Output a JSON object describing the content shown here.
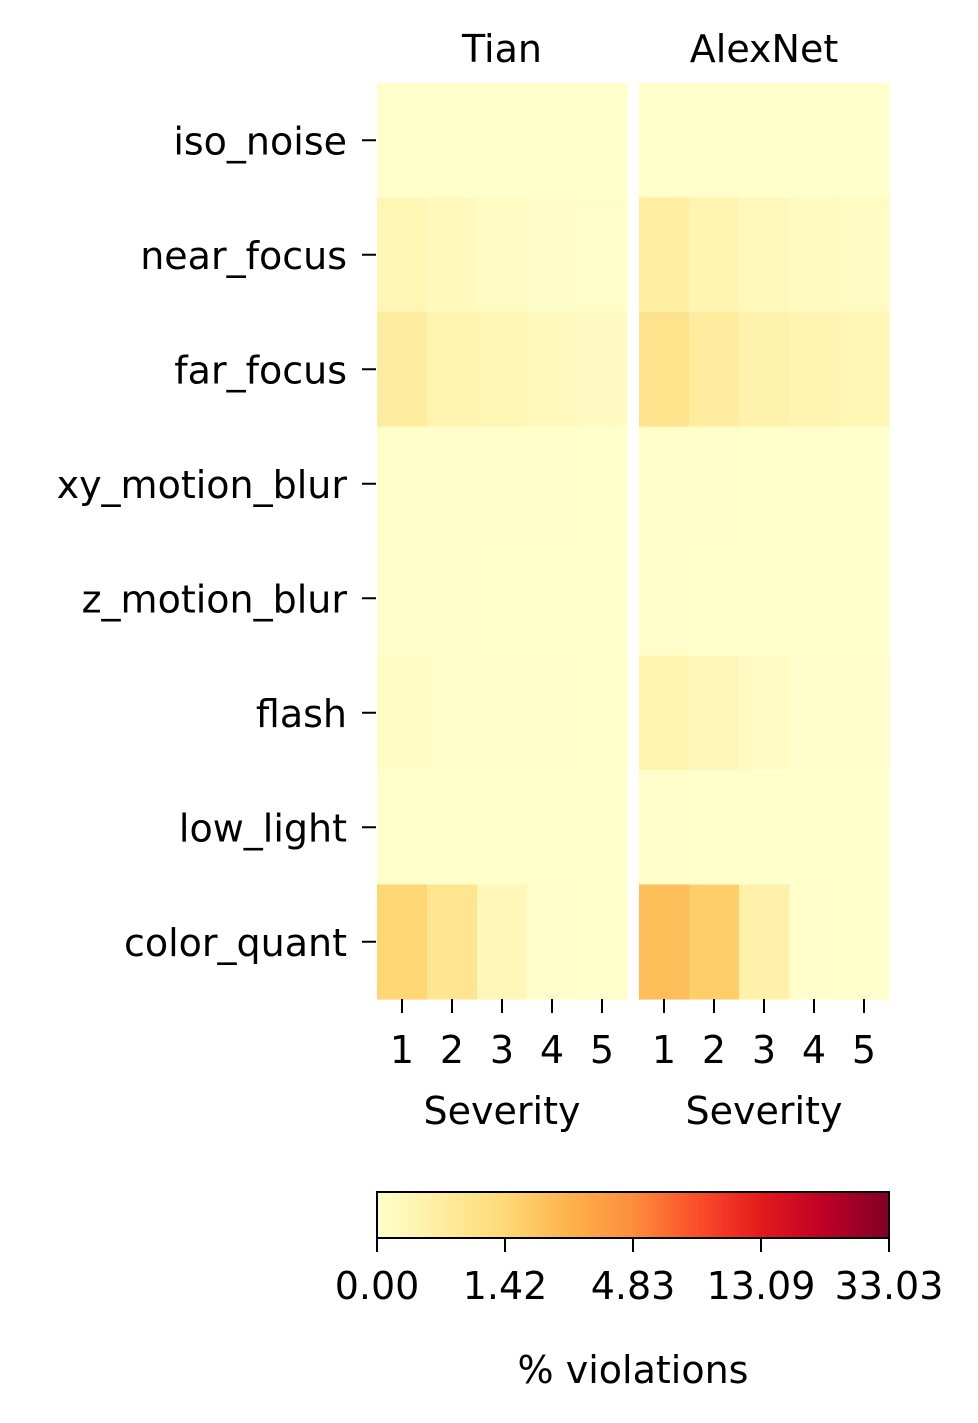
{
  "chart_data": {
    "type": "heatmap",
    "x_label": "Severity",
    "colorbar_label": "% violations",
    "colorbar_ticks": [
      "0.00",
      "1.42",
      "4.83",
      "13.09",
      "33.03"
    ],
    "colorbar_tick_values": [
      0.0,
      1.42,
      4.83,
      13.09,
      33.03
    ],
    "colorbar_range": [
      0.0,
      33.03
    ],
    "colormap": "YlOrRd",
    "x_categories": [
      "1",
      "2",
      "3",
      "4",
      "5"
    ],
    "y_categories": [
      "iso_noise",
      "near_focus",
      "far_focus",
      "xy_motion_blur",
      "z_motion_blur",
      "flash",
      "low_light",
      "color_quant"
    ],
    "panels": [
      {
        "title": "Tian",
        "values": [
          [
            0.0,
            0.0,
            0.0,
            0.0,
            0.0
          ],
          [
            0.35,
            0.22,
            0.15,
            0.08,
            0.05
          ],
          [
            0.72,
            0.45,
            0.35,
            0.25,
            0.18
          ],
          [
            0.05,
            0.03,
            0.02,
            0.02,
            0.01
          ],
          [
            0.04,
            0.02,
            0.01,
            0.01,
            0.01
          ],
          [
            0.1,
            0.06,
            0.03,
            0.02,
            0.01
          ],
          [
            0.01,
            0.01,
            0.0,
            0.0,
            0.0
          ],
          [
            1.55,
            1.0,
            0.3,
            0.02,
            0.01
          ]
        ]
      },
      {
        "title": "AlexNet",
        "values": [
          [
            0.0,
            0.0,
            0.0,
            0.0,
            0.0
          ],
          [
            0.7,
            0.42,
            0.28,
            0.2,
            0.15
          ],
          [
            1.05,
            0.75,
            0.5,
            0.42,
            0.35
          ],
          [
            0.03,
            0.02,
            0.01,
            0.01,
            0.01
          ],
          [
            0.02,
            0.01,
            0.01,
            0.01,
            0.0
          ],
          [
            0.45,
            0.3,
            0.15,
            0.03,
            0.02
          ],
          [
            0.02,
            0.01,
            0.01,
            0.0,
            0.0
          ],
          [
            2.6,
            1.9,
            0.55,
            0.02,
            0.01
          ]
        ]
      }
    ]
  }
}
